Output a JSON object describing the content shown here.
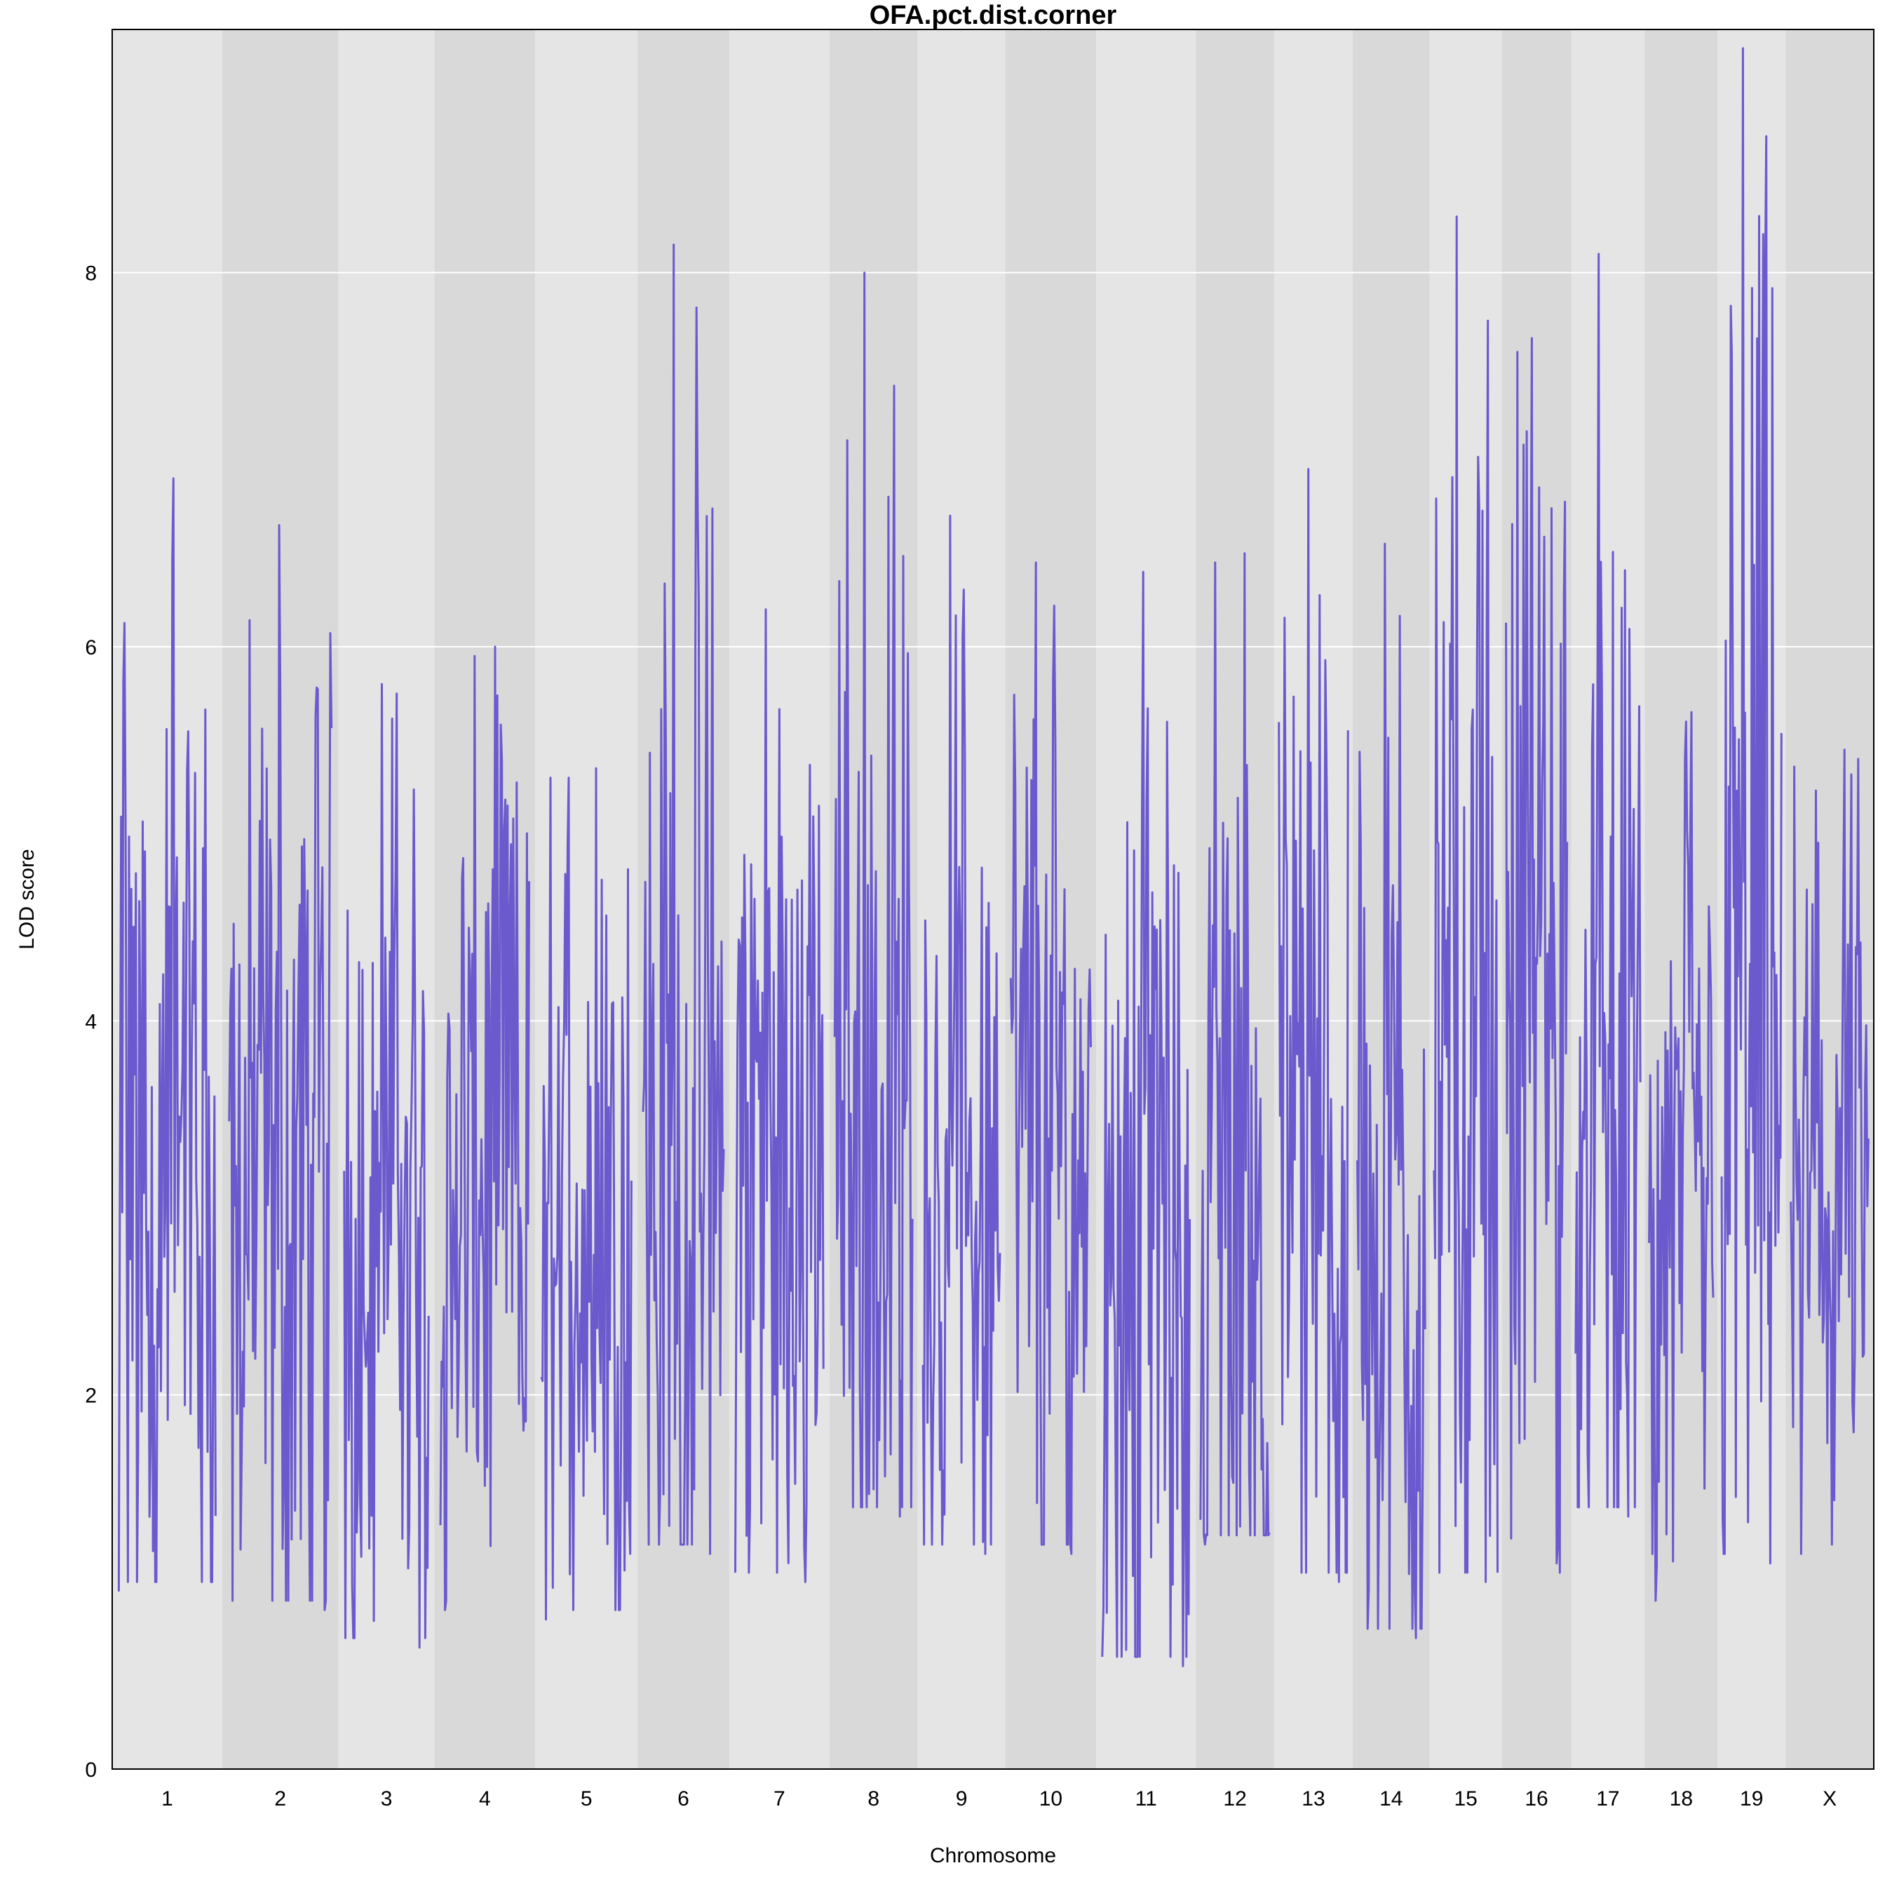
{
  "chart_data": {
    "type": "line",
    "title": "OFA.pct.dist.corner",
    "xlabel": "Chromosome",
    "ylabel": "LOD score",
    "ylim": [
      0,
      9.3
    ],
    "yticks": [
      0,
      2,
      4,
      6,
      8
    ],
    "grid": "horizontal",
    "band_colors": [
      "#e5e5e5",
      "#d9d9d9"
    ],
    "grid_color": "#ffffff",
    "line_color": "#6a5acd",
    "chromosomes": [
      {
        "label": "1",
        "peak": 6.9,
        "low": 0.95,
        "mean": 3.2
      },
      {
        "label": "2",
        "peak": 6.65,
        "low": 0.85,
        "mean": 3.0
      },
      {
        "label": "3",
        "peak": 5.8,
        "low": 0.65,
        "mean": 3.1
      },
      {
        "label": "4",
        "peak": 6.0,
        "low": 0.85,
        "mean": 3.0
      },
      {
        "label": "5",
        "peak": 5.35,
        "low": 0.8,
        "mean": 3.0
      },
      {
        "label": "6",
        "peak": 8.15,
        "low": 1.15,
        "mean": 3.1
      },
      {
        "label": "7",
        "peak": 6.2,
        "low": 1.0,
        "mean": 3.2
      },
      {
        "label": "8",
        "peak": 8.0,
        "low": 1.35,
        "mean": 3.4
      },
      {
        "label": "9",
        "peak": 6.7,
        "low": 1.15,
        "mean": 3.3
      },
      {
        "label": "10",
        "peak": 6.45,
        "low": 1.15,
        "mean": 3.1
      },
      {
        "label": "11",
        "peak": 6.4,
        "low": 0.55,
        "mean": 3.0
      },
      {
        "label": "12",
        "peak": 6.5,
        "low": 1.2,
        "mean": 3.1
      },
      {
        "label": "13",
        "peak": 6.95,
        "low": 1.0,
        "mean": 3.0
      },
      {
        "label": "14",
        "peak": 6.55,
        "low": 0.7,
        "mean": 3.0
      },
      {
        "label": "15",
        "peak": 8.3,
        "low": 1.0,
        "mean": 3.3
      },
      {
        "label": "16",
        "peak": 7.65,
        "low": 1.05,
        "mean": 4.2
      },
      {
        "label": "17",
        "peak": 8.1,
        "low": 1.35,
        "mean": 3.3
      },
      {
        "label": "18",
        "peak": 5.65,
        "low": 0.9,
        "mean": 2.8
      },
      {
        "label": "19",
        "peak": 9.2,
        "low": 1.1,
        "mean": 4.0
      },
      {
        "label": "X",
        "peak": 5.45,
        "low": 1.15,
        "mean": 3.0
      }
    ]
  }
}
